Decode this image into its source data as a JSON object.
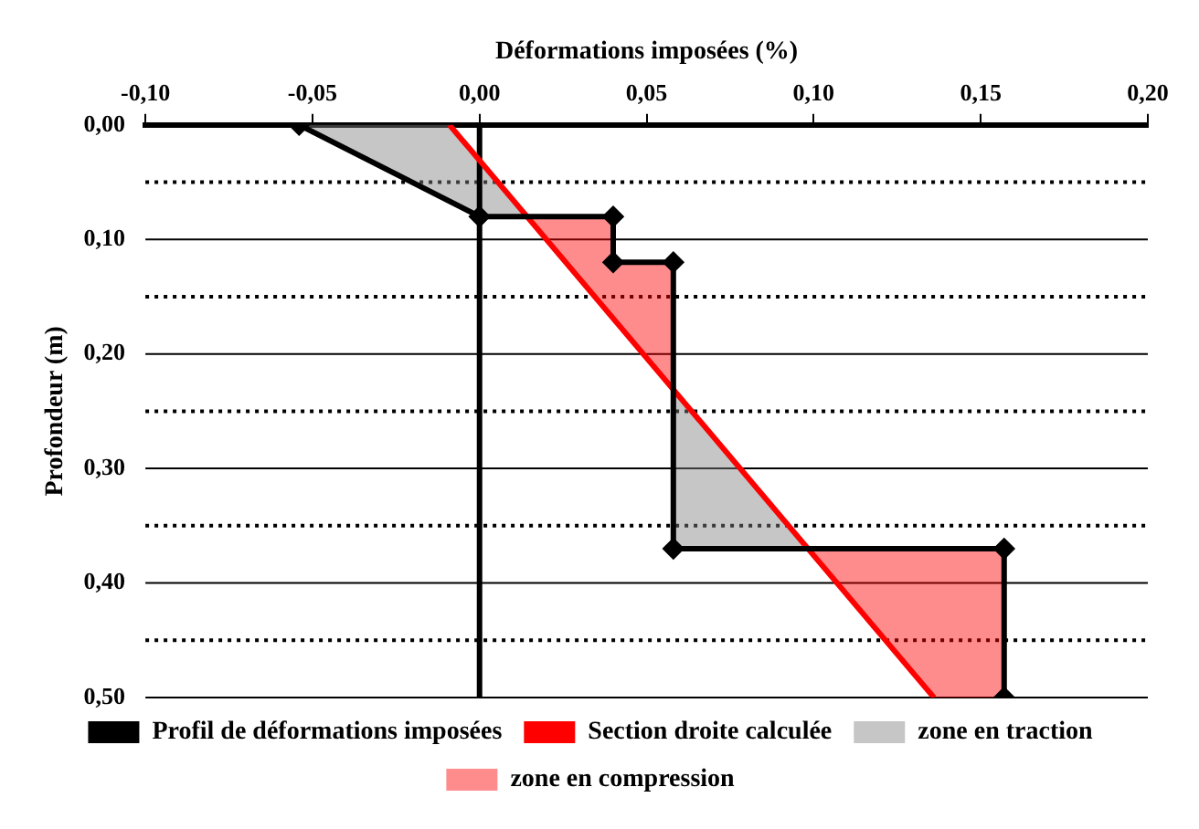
{
  "chart_data": {
    "type": "line",
    "xlabel": "Déformations imposées (%)",
    "ylabel": "Profondeur (m)",
    "xlim": [
      -0.1,
      0.2
    ],
    "xticks": [
      {
        "value": -0.1,
        "label": "-0,10"
      },
      {
        "value": -0.05,
        "label": "-0,05"
      },
      {
        "value": 0,
        "label": "0,00"
      },
      {
        "value": 0.05,
        "label": "0,05"
      },
      {
        "value": 0.1,
        "label": "0,10"
      },
      {
        "value": 0.15,
        "label": "0,15"
      },
      {
        "value": 0.2,
        "label": "0,20"
      }
    ],
    "ylim": [
      0.5,
      0
    ],
    "yticks": [
      {
        "value": 0,
        "label": "0,00"
      },
      {
        "value": 0.05,
        "label": null
      },
      {
        "value": 0.1,
        "label": "0,10"
      },
      {
        "value": 0.15,
        "label": null
      },
      {
        "value": 0.2,
        "label": "0,20"
      },
      {
        "value": 0.25,
        "label": null
      },
      {
        "value": 0.3,
        "label": "0,30"
      },
      {
        "value": 0.35,
        "label": null
      },
      {
        "value": 0.4,
        "label": "0,40"
      },
      {
        "value": 0.45,
        "label": null
      },
      {
        "value": 0.5,
        "label": "0,50"
      }
    ],
    "grid": "y",
    "legend": "bottom",
    "ref_lines": [
      {
        "axis": "x",
        "value": 0,
        "color": "#000000"
      }
    ],
    "series": [
      {
        "name": "Profil de déformations imposées",
        "type": "line",
        "color": "#000000",
        "marker": "diamond",
        "x": [
          -0.054,
          0,
          0.04,
          0.04,
          0.058,
          0.058,
          0.157,
          0.157
        ],
        "values": [
          0,
          0.08,
          0.08,
          0.12,
          0.12,
          0.37,
          0.37,
          0.5
        ]
      },
      {
        "name": "Section droite calculée",
        "type": "line",
        "color": "#ff0000",
        "marker": "none",
        "x": [
          -0.009,
          0.136
        ],
        "values": [
          0,
          0.5
        ]
      },
      {
        "name": "zone en traction",
        "type": "area",
        "color": "#808080",
        "x": [
          -0.054,
          -0.009,
          0.014,
          0,
          null,
          0.058,
          0.058,
          0.098
        ],
        "values": [
          0,
          0,
          0.08,
          0.08,
          null,
          0.232,
          0.37,
          0.37
        ]
      },
      {
        "name": "zone en compression",
        "type": "area",
        "color": "#ff0000",
        "x": [
          0.014,
          0.04,
          0.04,
          0.058,
          0.058,
          null,
          0.098,
          0.157,
          0.157,
          0.136
        ],
        "values": [
          0.08,
          0.08,
          0.12,
          0.12,
          0.232,
          null,
          0.37,
          0.37,
          0.5,
          0.5
        ]
      }
    ]
  }
}
